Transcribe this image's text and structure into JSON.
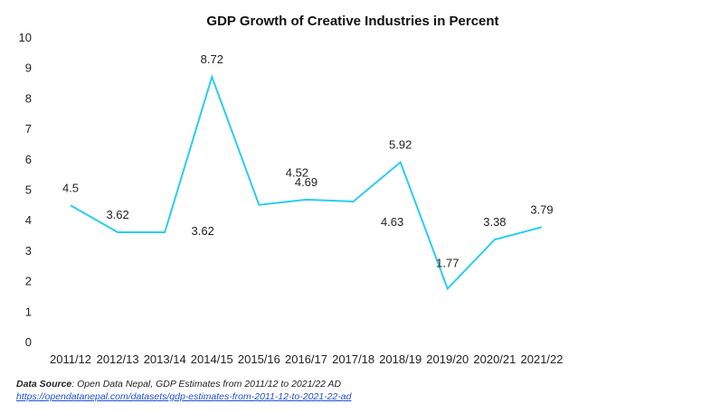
{
  "chart_data": {
    "type": "line",
    "title": "GDP Growth of Creative Industries in Percent",
    "categories": [
      "2011/12",
      "2012/13",
      "2013/14",
      "2014/15",
      "2015/16",
      "2016/17",
      "2017/18",
      "2018/19",
      "2019/20",
      "2020/21",
      "2021/22"
    ],
    "series": [
      {
        "values": [
          4.5,
          3.62,
          3.62,
          8.72,
          4.52,
          4.69,
          4.63,
          5.92,
          1.77,
          3.38,
          3.79
        ],
        "color": "#29cdf0"
      }
    ],
    "data_labels": [
      "4.5",
      "3.62",
      "3.62",
      "8.72",
      "4.52",
      "4.69",
      "4.63",
      "5.92",
      "1.77",
      "3.38",
      "3.79"
    ],
    "xlabel": "",
    "ylabel": "",
    "ylim": [
      0,
      10
    ],
    "yticks": [
      0,
      1,
      2,
      3,
      4,
      5,
      6,
      7,
      8,
      9,
      10
    ],
    "grid": false,
    "legend": "none"
  },
  "footer": {
    "source_label": "Data Source",
    "source_text": ": Open Data Nepal,  GDP Estimates from 2011/12 to 2021/22 AD",
    "link_text": "https://opendatanepal.com/datasets/gdp-estimates-from-2011-12-to-2021-22-ad"
  }
}
